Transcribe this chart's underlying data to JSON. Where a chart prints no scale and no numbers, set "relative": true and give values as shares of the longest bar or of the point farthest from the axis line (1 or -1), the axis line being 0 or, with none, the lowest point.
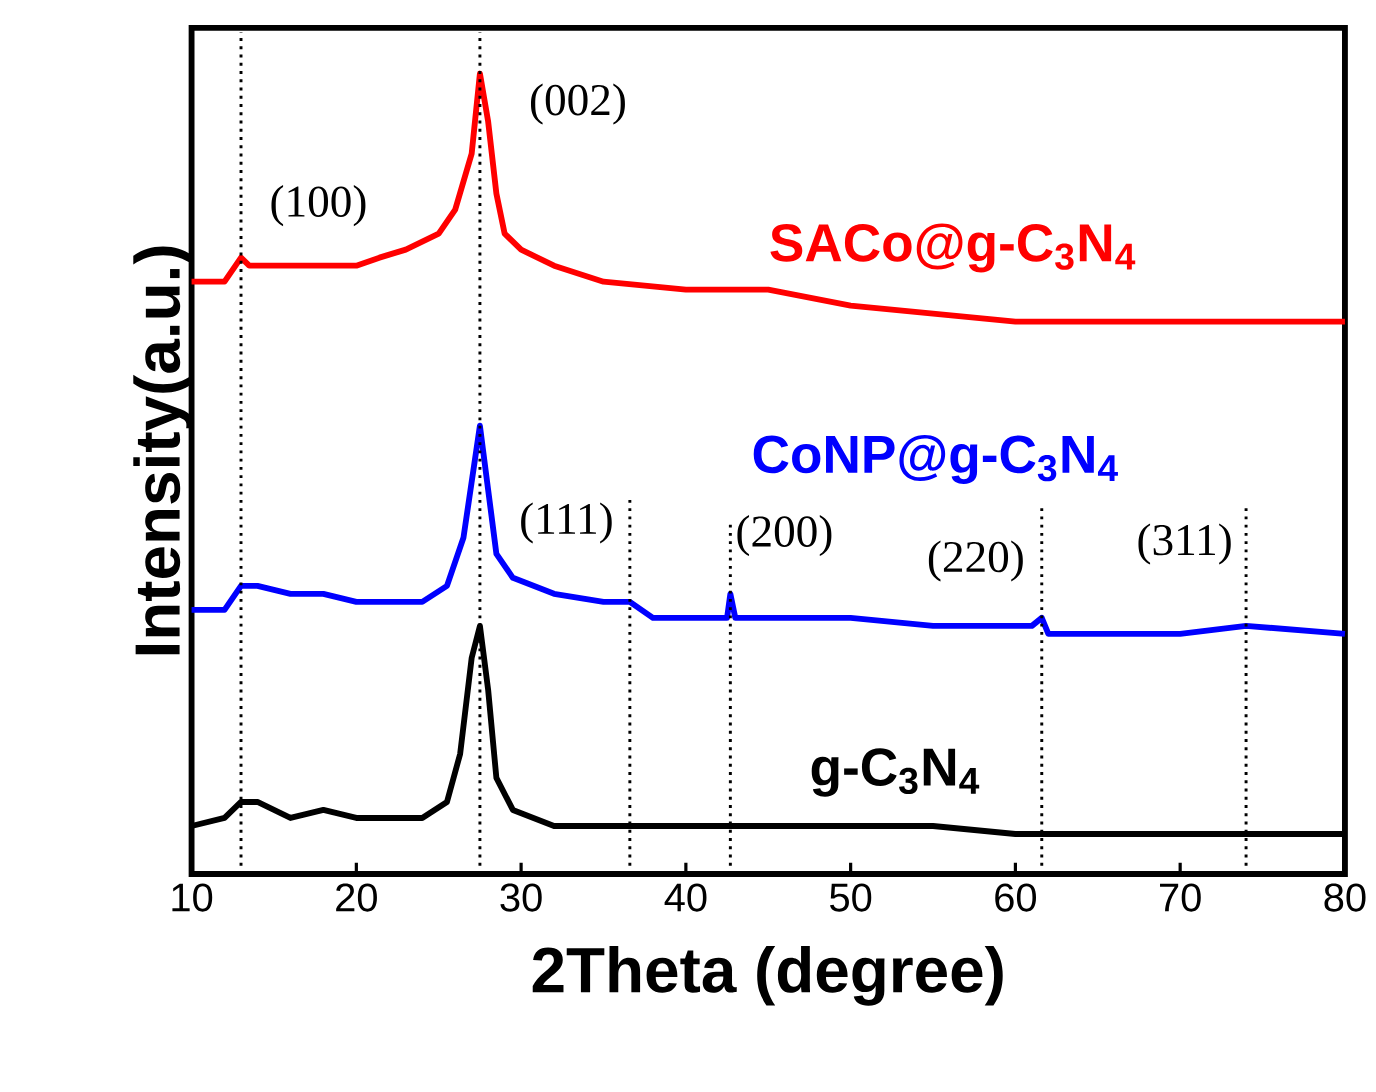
{
  "chart_data": {
    "type": "line",
    "relative": true,
    "xlabel": "2Theta (degree)",
    "ylabel": "Intensity(a.u.)",
    "xlim": [
      10,
      80
    ],
    "xticks": [
      10,
      20,
      30,
      40,
      50,
      60,
      70,
      80
    ],
    "marker": "none",
    "line_style": "solid",
    "series": [
      {
        "name": "SACo@g-C$_{3}$N$_{4}$",
        "color": "#ff0000",
        "x": [
          10,
          12,
          13,
          13.5,
          16,
          18,
          20,
          21.4,
          23,
          25,
          26,
          27,
          27.5,
          28,
          28.5,
          29,
          30,
          32,
          35,
          40,
          45,
          50,
          55,
          60,
          65,
          70,
          80
        ],
        "values": [
          0.74,
          0.74,
          0.77,
          0.76,
          0.76,
          0.76,
          0.76,
          0.77,
          0.78,
          0.8,
          0.83,
          0.9,
          1.0,
          0.94,
          0.85,
          0.8,
          0.78,
          0.76,
          0.74,
          0.73,
          0.73,
          0.71,
          0.7,
          0.69,
          0.69,
          0.69,
          0.69
        ]
      },
      {
        "name": "CoNP@g-C$_{3}$N$_{4}$",
        "color": "#0000ff",
        "x": [
          10,
          12,
          13,
          14,
          16,
          18,
          20,
          22,
          24,
          25.5,
          26.5,
          27,
          27.5,
          28,
          28.5,
          29.5,
          32,
          35,
          36.6,
          38,
          42.5,
          42.7,
          43,
          50,
          55,
          61,
          61.6,
          62,
          70,
          74,
          80
        ],
        "values": [
          0.33,
          0.33,
          0.36,
          0.36,
          0.35,
          0.35,
          0.34,
          0.34,
          0.34,
          0.36,
          0.42,
          0.49,
          0.56,
          0.48,
          0.4,
          0.37,
          0.35,
          0.34,
          0.34,
          0.32,
          0.32,
          0.35,
          0.32,
          0.32,
          0.31,
          0.31,
          0.32,
          0.3,
          0.3,
          0.31,
          0.3
        ]
      },
      {
        "name": "g-C$_{3}$N$_{4}$",
        "color": "#000000",
        "x": [
          10,
          12,
          13,
          14,
          16,
          18,
          20,
          24,
          25.5,
          26.3,
          27,
          27.5,
          28,
          28.5,
          29.5,
          32,
          36,
          42,
          44,
          50,
          55,
          60,
          70,
          80
        ],
        "values": [
          0.06,
          0.07,
          0.09,
          0.09,
          0.07,
          0.08,
          0.07,
          0.07,
          0.09,
          0.15,
          0.27,
          0.31,
          0.23,
          0.12,
          0.08,
          0.06,
          0.06,
          0.06,
          0.06,
          0.06,
          0.06,
          0.05,
          0.05,
          0.05
        ]
      }
    ],
    "ref_lines": [
      {
        "axis": "x",
        "value": 13,
        "color": "#000000",
        "line_style": "dotted"
      },
      {
        "axis": "x",
        "value": 27.5,
        "color": "#000000",
        "line_style": "dotted"
      },
      {
        "axis": "x",
        "value": 36.6,
        "color": "#000000",
        "line_style": "dotted"
      },
      {
        "axis": "x",
        "value": 42.7,
        "color": "#000000",
        "line_style": "dotted"
      },
      {
        "axis": "x",
        "value": 61.6,
        "color": "#000000",
        "line_style": "dotted"
      },
      {
        "axis": "x",
        "value": 74,
        "color": "#000000",
        "line_style": "dotted"
      }
    ],
    "annotations": [
      "(100)",
      "(002)",
      "(111)",
      "(200)",
      "(220)",
      "(311)"
    ]
  }
}
